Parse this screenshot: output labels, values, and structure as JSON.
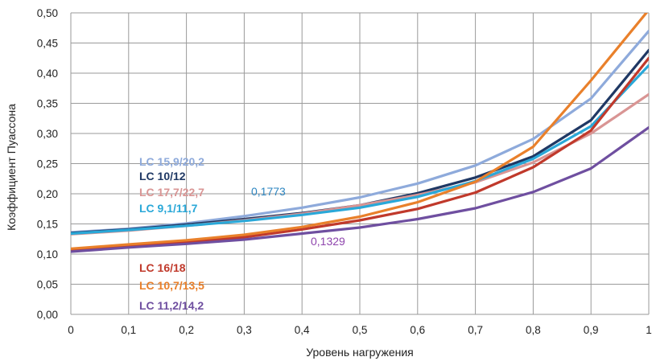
{
  "chart_data": {
    "type": "line",
    "xlabel": "Уровень нагружения",
    "ylabel": "Коэффициент Пуассона",
    "xlim": [
      0,
      1
    ],
    "ylim": [
      0,
      0.5
    ],
    "x_ticks": [
      "0",
      "0,1",
      "0,2",
      "0,3",
      "0,4",
      "0,5",
      "0,6",
      "0,7",
      "0,8",
      "0,9",
      "1"
    ],
    "y_ticks": [
      "0,00",
      "0,05",
      "0,10",
      "0,15",
      "0,20",
      "0,25",
      "0,30",
      "0,35",
      "0,40",
      "0,45",
      "0,50"
    ],
    "grid": true,
    "x": [
      0,
      0.1,
      0.2,
      0.3,
      0.4,
      0.5,
      0.6,
      0.7,
      0.8,
      0.9,
      1.0
    ],
    "series": [
      {
        "name": "LC 15,9/20,2",
        "color": "#8eaadb",
        "values": [
          0.136,
          0.142,
          0.151,
          0.163,
          0.177,
          0.194,
          0.217,
          0.247,
          0.291,
          0.358,
          0.47
        ]
      },
      {
        "name": "LC 10/12",
        "color": "#1f3864",
        "values": [
          0.135,
          0.141,
          0.149,
          0.158,
          0.168,
          0.181,
          0.201,
          0.227,
          0.262,
          0.322,
          0.438
        ]
      },
      {
        "name": "LC 17,7/22,7",
        "color": "#d99594",
        "values": [
          0.133,
          0.139,
          0.147,
          0.156,
          0.167,
          0.181,
          0.198,
          0.219,
          0.252,
          0.3,
          0.365
        ]
      },
      {
        "name": "LC 9,1/11,7",
        "color": "#2aa8d8",
        "values": [
          0.134,
          0.14,
          0.147,
          0.155,
          0.165,
          0.177,
          0.195,
          0.221,
          0.258,
          0.312,
          0.413
        ]
      },
      {
        "name": "LC 16/18",
        "color": "#c0392b",
        "values": [
          0.106,
          0.114,
          0.12,
          0.128,
          0.141,
          0.156,
          0.175,
          0.202,
          0.244,
          0.305,
          0.425
        ]
      },
      {
        "name": "LC 10,7/13,5",
        "color": "#e9802b",
        "values": [
          0.109,
          0.116,
          0.123,
          0.132,
          0.145,
          0.162,
          0.186,
          0.22,
          0.278,
          0.388,
          0.505
        ]
      },
      {
        "name": "LC 11,2/14,2",
        "color": "#6f4fa0",
        "values": [
          0.104,
          0.111,
          0.117,
          0.124,
          0.134,
          0.144,
          0.158,
          0.176,
          0.203,
          0.242,
          0.31
        ]
      }
    ],
    "annotations": [
      {
        "text": "0,1773",
        "color": "#2e86c1"
      },
      {
        "text": "0,1329",
        "color": "#8e44ad"
      }
    ]
  }
}
